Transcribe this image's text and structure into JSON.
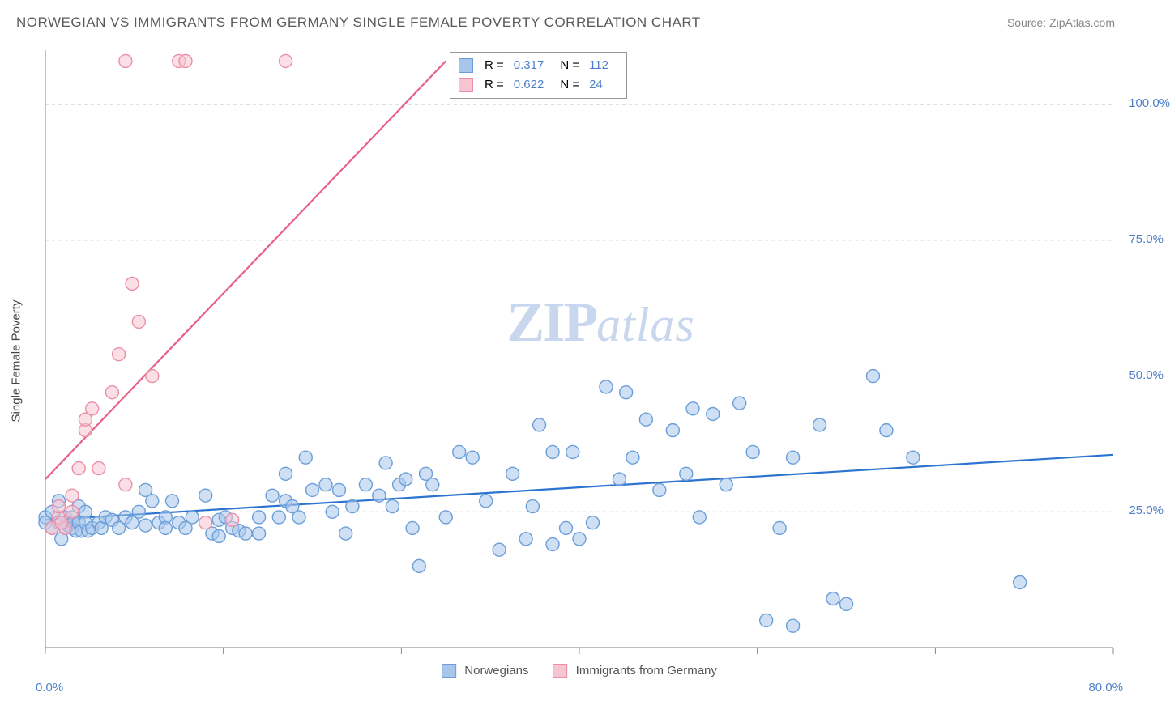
{
  "header": {
    "title": "NORWEGIAN VS IMMIGRANTS FROM GERMANY SINGLE FEMALE POVERTY CORRELATION CHART",
    "source": "Source: ZipAtlas.com"
  },
  "chart": {
    "type": "scatter",
    "y_axis_label": "Single Female Poverty",
    "background_color": "#ffffff",
    "grid_color": "#cccccc",
    "axis_color": "#999999",
    "tick_color": "#888888",
    "tick_label_color": "#4d7fc9",
    "xlim": [
      0,
      80
    ],
    "ylim": [
      0,
      110
    ],
    "x_ticks": [
      0,
      13.33,
      26.67,
      40,
      53.33,
      66.67,
      80
    ],
    "x_tick_labels_shown": {
      "0": "0.0%",
      "80": "80.0%"
    },
    "y_ticks": [
      25,
      50,
      75,
      100
    ],
    "y_tick_labels": [
      "25.0%",
      "50.0%",
      "75.0%",
      "100.0%"
    ],
    "marker_radius": 8,
    "marker_stroke_width": 1.4,
    "line_width": 2.2,
    "watermark": {
      "zip": "ZIP",
      "atlas": "atlas"
    },
    "series": [
      {
        "key": "norwegians",
        "label": "Norwegians",
        "fill": "#a8c6ec",
        "stroke": "#6b9ed8",
        "line_color": "#2b74d0",
        "trend": {
          "x1": 0,
          "y1": 23.5,
          "x2": 80,
          "y2": 35.5
        },
        "stats": {
          "R": "0.317",
          "N": "112"
        },
        "points": [
          [
            0,
            24
          ],
          [
            0,
            23
          ],
          [
            0.5,
            25
          ],
          [
            0.5,
            22
          ],
          [
            1,
            23
          ],
          [
            1,
            27
          ],
          [
            1.2,
            20
          ],
          [
            1.5,
            22
          ],
          [
            1.5,
            24
          ],
          [
            1.7,
            22.5
          ],
          [
            2,
            24
          ],
          [
            2,
            22
          ],
          [
            2.1,
            23
          ],
          [
            2.3,
            21.5
          ],
          [
            2.5,
            23
          ],
          [
            2.5,
            26
          ],
          [
            2.7,
            21.5
          ],
          [
            3,
            25
          ],
          [
            3,
            23
          ],
          [
            3.2,
            21.5
          ],
          [
            3.5,
            22
          ],
          [
            4,
            23
          ],
          [
            4.2,
            22
          ],
          [
            4.5,
            24
          ],
          [
            5,
            23.5
          ],
          [
            5.5,
            22
          ],
          [
            6,
            24
          ],
          [
            6.5,
            23
          ],
          [
            7,
            25
          ],
          [
            7.5,
            22.5
          ],
          [
            7.5,
            29
          ],
          [
            8,
            27
          ],
          [
            8.5,
            23
          ],
          [
            9,
            24
          ],
          [
            9,
            22
          ],
          [
            9.5,
            27
          ],
          [
            10,
            23
          ],
          [
            10.5,
            22
          ],
          [
            11,
            24
          ],
          [
            12,
            28
          ],
          [
            12.5,
            21
          ],
          [
            13,
            23.5
          ],
          [
            13,
            20.5
          ],
          [
            13.5,
            24
          ],
          [
            14,
            22
          ],
          [
            14.5,
            21.5
          ],
          [
            15,
            21
          ],
          [
            16,
            21
          ],
          [
            16,
            24
          ],
          [
            17,
            28
          ],
          [
            17.5,
            24
          ],
          [
            18,
            32
          ],
          [
            18,
            27
          ],
          [
            18.5,
            26
          ],
          [
            19,
            24
          ],
          [
            19.5,
            35
          ],
          [
            20,
            29
          ],
          [
            21,
            30
          ],
          [
            21.5,
            25
          ],
          [
            22,
            29
          ],
          [
            22.5,
            21
          ],
          [
            23,
            26
          ],
          [
            24,
            30
          ],
          [
            25,
            28
          ],
          [
            25.5,
            34
          ],
          [
            26,
            26
          ],
          [
            26.5,
            30
          ],
          [
            27,
            31
          ],
          [
            27.5,
            22
          ],
          [
            28,
            15
          ],
          [
            28.5,
            32
          ],
          [
            29,
            30
          ],
          [
            30,
            24
          ],
          [
            31,
            36
          ],
          [
            32,
            35
          ],
          [
            33,
            27
          ],
          [
            34,
            18
          ],
          [
            35,
            32
          ],
          [
            36,
            20
          ],
          [
            36.5,
            26
          ],
          [
            37,
            41
          ],
          [
            38,
            19
          ],
          [
            39,
            22
          ],
          [
            39.5,
            36
          ],
          [
            40,
            20
          ],
          [
            41,
            23
          ],
          [
            42,
            48
          ],
          [
            43,
            31
          ],
          [
            43.5,
            47
          ],
          [
            44,
            35
          ],
          [
            45,
            42
          ],
          [
            46,
            29
          ],
          [
            47,
            40
          ],
          [
            48,
            32
          ],
          [
            48.5,
            44
          ],
          [
            49,
            24
          ],
          [
            50,
            43
          ],
          [
            51,
            30
          ],
          [
            52,
            45
          ],
          [
            53,
            36
          ],
          [
            54,
            5
          ],
          [
            55,
            22
          ],
          [
            56,
            35
          ],
          [
            58,
            41
          ],
          [
            59,
            9
          ],
          [
            60,
            8
          ],
          [
            62,
            50
          ],
          [
            63,
            40
          ],
          [
            56,
            4
          ],
          [
            73,
            12
          ],
          [
            65,
            35
          ],
          [
            38,
            36
          ]
        ]
      },
      {
        "key": "germany",
        "label": "Immigrants from Germany",
        "fill": "#f6c5d1",
        "stroke": "#eb8fa8",
        "line_color": "#e85f88",
        "trend": {
          "x1": 0,
          "y1": 31,
          "x2": 30,
          "y2": 108
        },
        "stats": {
          "R": "0.622",
          "N": "24"
        },
        "points": [
          [
            0.5,
            22
          ],
          [
            1,
            24
          ],
          [
            1,
            26
          ],
          [
            1.5,
            22
          ],
          [
            1.2,
            23
          ],
          [
            2,
            25
          ],
          [
            2,
            28
          ],
          [
            2.5,
            33
          ],
          [
            3,
            40
          ],
          [
            3,
            42
          ],
          [
            3.5,
            44
          ],
          [
            4,
            33
          ],
          [
            5,
            47
          ],
          [
            5.5,
            54
          ],
          [
            6,
            30
          ],
          [
            6.5,
            67
          ],
          [
            7,
            60
          ],
          [
            8,
            50
          ],
          [
            6,
            108
          ],
          [
            10,
            108
          ],
          [
            10.5,
            108
          ],
          [
            12,
            23
          ],
          [
            18,
            108
          ],
          [
            14,
            23.5
          ]
        ]
      }
    ],
    "legend": {
      "items": [
        "Norwegians",
        "Immigrants from Germany"
      ]
    }
  }
}
